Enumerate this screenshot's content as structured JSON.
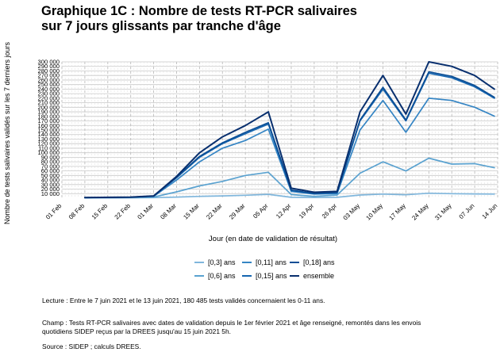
{
  "title_lines": [
    "Graphique 1C : Nombre de tests RT-PCR salivaires",
    "sur 7 jours glissants par tranche d'âge"
  ],
  "notes": {
    "lecture": "Lecture : Entre le 7 juin 2021 et le 13 juin 2021, 180 485 tests validés concernaient les 0-11 ans.",
    "champ_line1": "Champ : Tests RT-PCR salivaires avec dates de validation depuis le 1er février 2021 et âge renseigné, remontés dans les envois",
    "champ_line2": "quotidiens SIDEP reçus par la DREES jusqu'au 15 juin 2021 5h.",
    "source": "Source : SIDEP ; calculs DREES."
  },
  "chart_data": {
    "type": "line",
    "title": "Graphique 1C : Nombre de tests RT-PCR salivaires sur 7 jours glissants par tranche d'âge",
    "xlabel": "Jour (en date de validation de résultat)",
    "ylabel": "Nombre de tests salivaires validés sur les 7 derniers jours",
    "x_start_date": "2021-02-08",
    "x_step_days": 7,
    "x_dates": [
      "2021-02-08",
      "2021-02-15",
      "2021-02-22",
      "2021-03-01",
      "2021-03-08",
      "2021-03-15",
      "2021-03-22",
      "2021-03-29",
      "2021-04-05",
      "2021-04-12",
      "2021-04-19",
      "2021-04-26",
      "2021-05-03",
      "2021-05-10",
      "2021-05-17",
      "2021-05-24",
      "2021-05-31",
      "2021-06-07",
      "2021-06-13"
    ],
    "xlim_dates": [
      "2021-02-01",
      "2021-06-14"
    ],
    "x_tick_labels": [
      "01 Feb",
      "08 Feb",
      "15 Feb",
      "22 Feb",
      "01 Mar",
      "08 Mar",
      "15 Mar",
      "22 Mar",
      "29 Mar",
      "05 Apr",
      "12 Apr",
      "19 Apr",
      "26 Apr",
      "03 May",
      "10 May",
      "17 May",
      "24 May",
      "31 May",
      "07 Jun",
      "14 Jun"
    ],
    "ylim": [
      0,
      300000
    ],
    "y_tick_labels": [
      "10 000",
      "20 000",
      "30 000",
      "40 000",
      "50 000",
      "60 000",
      "70 000",
      "80 000",
      "90 000",
      "100 000",
      "110 000",
      "120 000",
      "130 000",
      "140 000",
      "150 000",
      "160 000",
      "170 000",
      "180 000",
      "190 000",
      "200 000",
      "210 000",
      "220 000",
      "230 000",
      "240 000",
      "250 000",
      "260 000",
      "270 000",
      "280 000",
      "290 000",
      "300 000"
    ],
    "grid": true,
    "legend_position": "bottom",
    "series": [
      {
        "name": "[0,3] ans",
        "color": "#7fb6dc",
        "values": [
          500,
          700,
          900,
          1300,
          2500,
          4000,
          5000,
          6500,
          8500,
          2000,
          1500,
          2000,
          7000,
          9000,
          7500,
          11000,
          10000,
          9500,
          9000
        ]
      },
      {
        "name": "[0,6] ans",
        "color": "#5aa2d0",
        "values": [
          800,
          1200,
          1500,
          2500,
          14000,
          27000,
          37000,
          50000,
          57000,
          8000,
          4000,
          7000,
          55000,
          80000,
          60000,
          88000,
          75000,
          76000,
          67000
        ]
      },
      {
        "name": "[0,11] ans",
        "color": "#3585c4",
        "values": [
          1000,
          1500,
          2000,
          4000,
          40000,
          80000,
          110000,
          127000,
          152000,
          15000,
          9000,
          10000,
          150000,
          215000,
          145000,
          220000,
          215000,
          200000,
          180485
        ]
      },
      {
        "name": "[0,15] ans",
        "color": "#1565b0",
        "values": [
          1200,
          1700,
          2200,
          4500,
          45000,
          90000,
          120000,
          142000,
          163000,
          17000,
          10000,
          12000,
          170000,
          240000,
          170000,
          275000,
          265000,
          245000,
          220000
        ]
      },
      {
        "name": "[0,18] ans",
        "color": "#0b4e95",
        "values": [
          1300,
          1800,
          2300,
          4700,
          46000,
          92000,
          122000,
          145000,
          166000,
          18000,
          10500,
          12500,
          172000,
          244000,
          172000,
          278000,
          268000,
          248000,
          222000
        ]
      },
      {
        "name": "ensemble",
        "color": "#082f6e",
        "values": [
          1500,
          2000,
          2500,
          5000,
          48000,
          100000,
          135000,
          160000,
          190000,
          22000,
          13000,
          15000,
          190000,
          270000,
          185000,
          300000,
          290000,
          270000,
          240000
        ]
      }
    ]
  }
}
